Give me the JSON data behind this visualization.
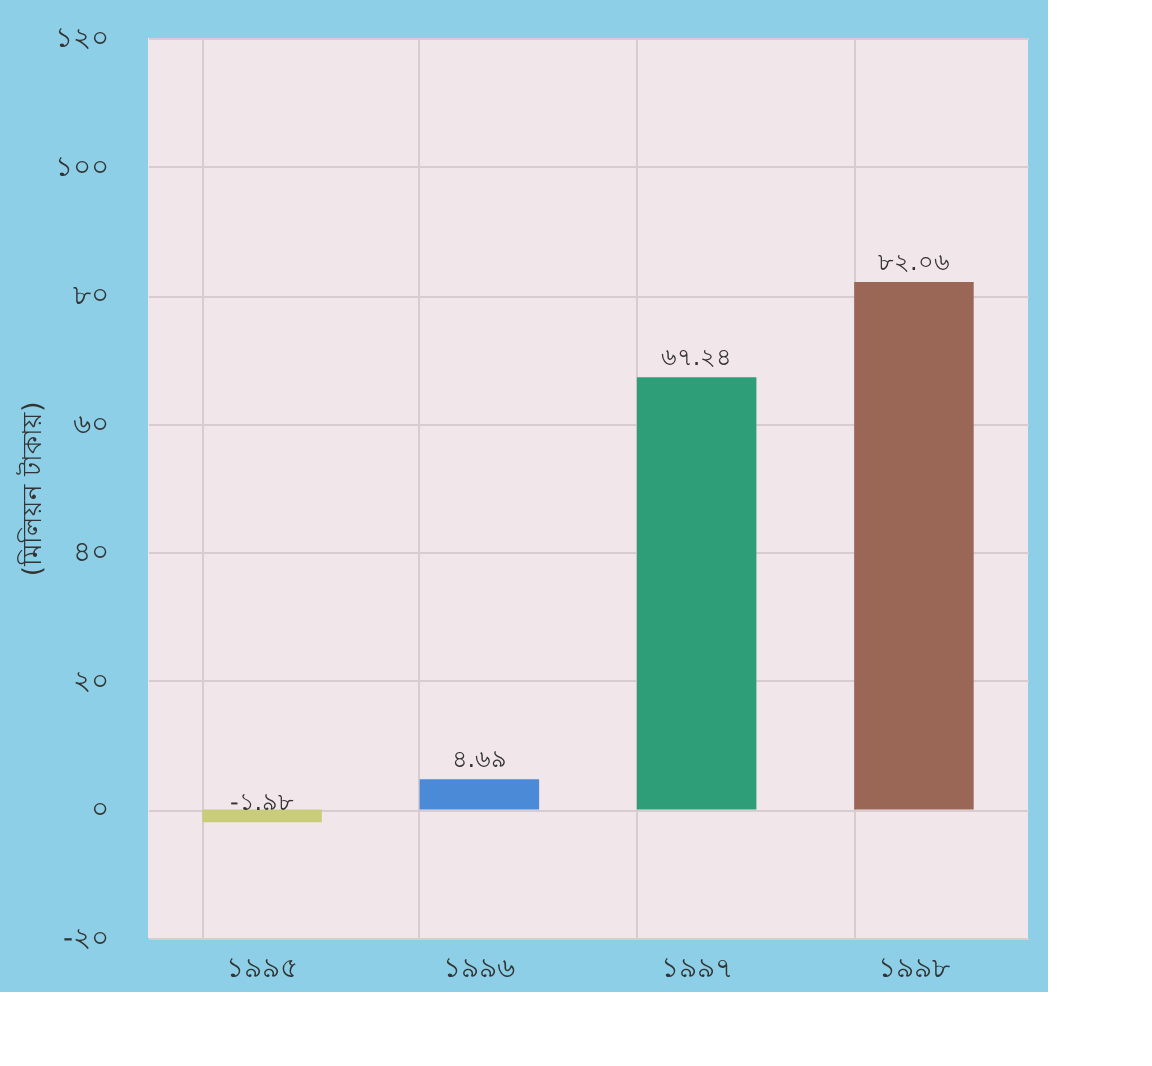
{
  "chart_data": {
    "type": "bar",
    "ylabel": "(মিলিয়ন টাকায়)",
    "categories": [
      "১৯৯৫",
      "১৯৯৬",
      "১৯৯৭",
      "১৯৯৮"
    ],
    "values": [
      -1.98,
      4.69,
      67.24,
      82.06
    ],
    "colors": [
      "#c9cc7a",
      "#4a8ad6",
      "#2e9e78",
      "#9a6656"
    ],
    "value_labels": [
      "-১.৯৮",
      "৪.৬৯",
      "৬৭.২৪",
      "৮২.০৬"
    ],
    "ylim": [
      -20,
      120
    ],
    "yticks": [
      {
        "value": -20,
        "label": "-২০"
      },
      {
        "value": 0,
        "label": "০"
      },
      {
        "value": 20,
        "label": "২০"
      },
      {
        "value": 40,
        "label": "৪০"
      },
      {
        "value": 60,
        "label": "৬০"
      },
      {
        "value": 80,
        "label": "৮০"
      },
      {
        "value": 100,
        "label": "১০০"
      },
      {
        "value": 120,
        "label": "১২০"
      }
    ],
    "grid": true
  }
}
